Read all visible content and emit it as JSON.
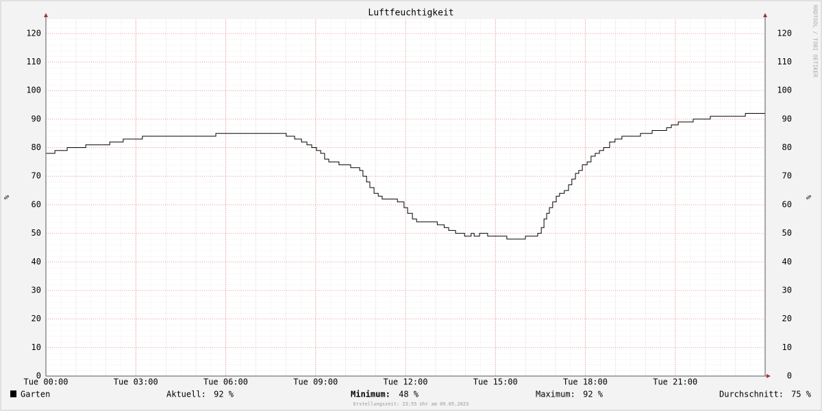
{
  "chart_data": {
    "type": "line",
    "title": "Luftfeuchtigkeit",
    "y_label": "%",
    "y2_label": "%",
    "side_note": "RRDTOOL / TOBI OETIKER",
    "xlim": [
      0,
      24
    ],
    "ylim": [
      0,
      125
    ],
    "xticks": [
      {
        "value": 0,
        "label": "Tue 00:00"
      },
      {
        "value": 3,
        "label": "Tue 03:00"
      },
      {
        "value": 6,
        "label": "Tue 06:00"
      },
      {
        "value": 9,
        "label": "Tue 09:00"
      },
      {
        "value": 12,
        "label": "Tue 12:00"
      },
      {
        "value": 15,
        "label": "Tue 15:00"
      },
      {
        "value": 18,
        "label": "Tue 18:00"
      },
      {
        "value": 21,
        "label": "Tue 21:00"
      }
    ],
    "yticks": [
      0,
      10,
      20,
      30,
      40,
      50,
      60,
      70,
      80,
      90,
      100,
      110,
      120
    ],
    "grid": true,
    "series": [
      {
        "name": "Garten",
        "color": "#000000",
        "x": [
          0,
          0.3,
          0.3,
          0.71,
          0.71,
          1.33,
          1.33,
          2.13,
          2.13,
          2.58,
          2.58,
          3.22,
          3.22,
          5.67,
          5.67,
          8.02,
          8.02,
          8.3,
          8.3,
          8.53,
          8.53,
          8.71,
          8.71,
          8.87,
          8.87,
          9.03,
          9.03,
          9.17,
          9.17,
          9.3,
          9.3,
          9.44,
          9.44,
          9.78,
          9.78,
          10.17,
          10.17,
          10.47,
          10.47,
          10.58,
          10.58,
          10.7,
          10.7,
          10.81,
          10.81,
          10.95,
          10.95,
          11.09,
          11.09,
          11.22,
          11.22,
          11.73,
          11.73,
          11.95,
          11.95,
          12.07,
          12.07,
          12.23,
          12.23,
          12.37,
          12.37,
          13.06,
          13.06,
          13.29,
          13.29,
          13.44,
          13.44,
          13.67,
          13.67,
          13.97,
          13.97,
          14.19,
          14.19,
          14.29,
          14.29,
          14.47,
          14.47,
          14.74,
          14.74,
          15.38,
          15.38,
          16.0,
          16.0,
          16.41,
          16.41,
          16.53,
          16.53,
          16.62,
          16.62,
          16.71,
          16.71,
          16.8,
          16.8,
          16.91,
          16.91,
          17.03,
          17.03,
          17.14,
          17.14,
          17.3,
          17.3,
          17.44,
          17.44,
          17.55,
          17.55,
          17.67,
          17.67,
          17.78,
          17.78,
          17.9,
          17.9,
          18.06,
          18.06,
          18.19,
          18.19,
          18.33,
          18.33,
          18.47,
          18.47,
          18.61,
          18.61,
          18.81,
          18.81,
          18.99,
          18.99,
          19.22,
          19.22,
          19.84,
          19.84,
          20.23,
          20.23,
          20.71,
          20.71,
          20.87,
          20.87,
          21.1,
          21.1,
          21.6,
          21.6,
          22.17,
          22.17,
          23.34,
          23.34,
          24
        ],
        "values": [
          78,
          78,
          79,
          79,
          80,
          80,
          81,
          81,
          82,
          82,
          83,
          83,
          84,
          84,
          85,
          85,
          84,
          84,
          83,
          83,
          82,
          82,
          81,
          81,
          80,
          80,
          79,
          79,
          78,
          78,
          76,
          76,
          75,
          75,
          74,
          74,
          73,
          73,
          72,
          72,
          70,
          70,
          68,
          68,
          66,
          66,
          64,
          64,
          63,
          63,
          62,
          62,
          61,
          61,
          59,
          59,
          57,
          57,
          55,
          55,
          54,
          54,
          53,
          53,
          52,
          52,
          51,
          51,
          50,
          50,
          49,
          49,
          50,
          50,
          49,
          49,
          50,
          50,
          49,
          49,
          48,
          48,
          49,
          49,
          50,
          50,
          52,
          52,
          55,
          55,
          57,
          57,
          59,
          59,
          61,
          61,
          63,
          63,
          64,
          64,
          65,
          65,
          67,
          67,
          69,
          69,
          71,
          71,
          72,
          72,
          74,
          74,
          75,
          75,
          77,
          77,
          78,
          78,
          79,
          79,
          80,
          80,
          82,
          82,
          83,
          83,
          84,
          84,
          85,
          85,
          86,
          86,
          87,
          87,
          88,
          88,
          89,
          89,
          90,
          90,
          91,
          91,
          92,
          92
        ]
      }
    ],
    "stats": [
      {
        "name": "Aktuell:",
        "value": 92,
        "value_label": "92 %"
      },
      {
        "name": "Minimum:",
        "value": 48,
        "value_label": "48 %"
      },
      {
        "name": "Maximum:",
        "value": 92,
        "value_label": "92 %"
      },
      {
        "name": "Durchschnitt:",
        "value": 75,
        "value_label": "75 %"
      }
    ],
    "footer": "Erstellungszeit: 23:55 Uhr am 09.05.2023"
  }
}
